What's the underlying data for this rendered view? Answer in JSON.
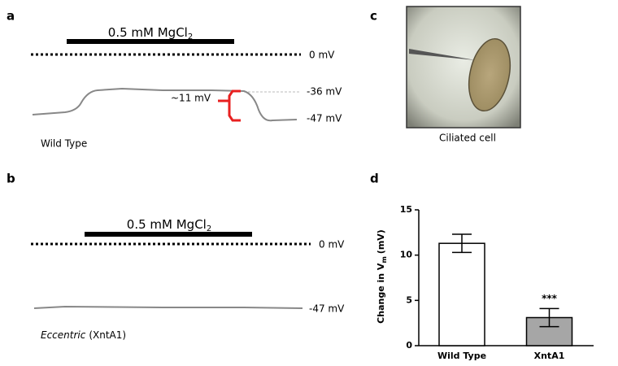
{
  "panels": {
    "a": {
      "label": "a",
      "drug": "0.5 mM MgCl",
      "drug_sub": "2",
      "zero": "0 mV",
      "upper": "-36 mV",
      "lower": "-47 mV",
      "delta": "~11 mV",
      "genotype": "Wild Type"
    },
    "b": {
      "label": "b",
      "drug": "0.5 mM MgCl",
      "drug_sub": "2",
      "zero": "0 mV",
      "lower": "-47 mV",
      "genotype_italic": "Eccentric",
      "genotype_rest": "(XntA1)"
    },
    "c": {
      "label": "c",
      "caption": "Ciliated cell"
    }
  },
  "chart_data": {
    "type": "bar",
    "label": "d",
    "ylabel": {
      "text": "Change in V",
      "sub": "m",
      "unit": "(mV)"
    },
    "categories": [
      "Wild Type",
      "XntA1"
    ],
    "values": [
      11.3,
      3.1
    ],
    "errors": [
      1.0,
      1.0
    ],
    "colors": [
      "#ffffff",
      "#a6a6a6"
    ],
    "ylim": [
      0,
      15
    ],
    "yticks": [
      0,
      5,
      10,
      15
    ],
    "annotation": {
      "category": 1,
      "text": "***"
    }
  }
}
